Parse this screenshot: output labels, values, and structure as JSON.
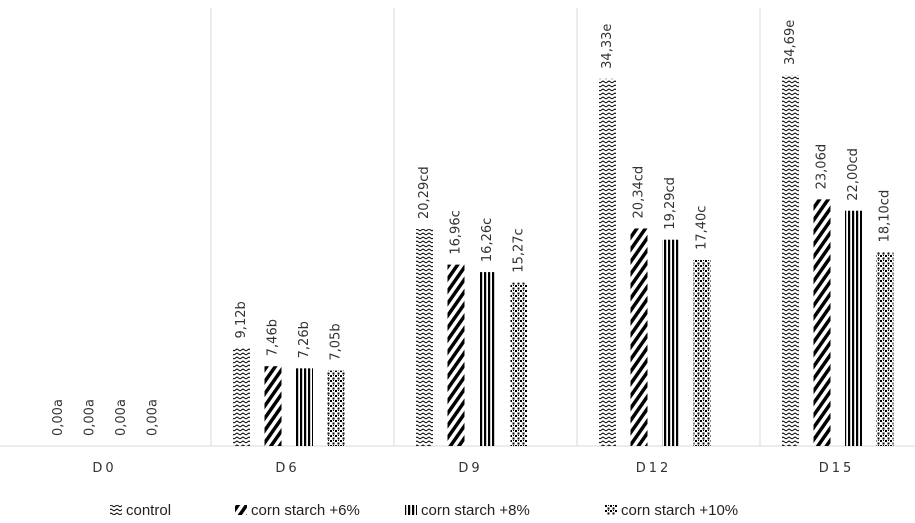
{
  "chart_data": {
    "type": "bar",
    "categories": [
      "D0",
      "D6",
      "D9",
      "D12",
      "D15"
    ],
    "series": [
      {
        "name": "control",
        "color": "#000000",
        "pattern": "zigzag",
        "values": [
          0,
          9.12,
          20.29,
          34.33,
          34.69
        ],
        "value_labels": [
          "0,00a",
          "9,12b",
          "20,29cd",
          "34,33e",
          "34,69e"
        ]
      },
      {
        "name": "corn starch +6%",
        "color": "#000000",
        "pattern": "diagonal",
        "values": [
          0,
          7.46,
          16.96,
          20.34,
          23.06
        ],
        "value_labels": [
          "0,00a",
          "7,46b",
          "16,96c",
          "20,34cd",
          "23,06d"
        ]
      },
      {
        "name": "corn starch +8%",
        "color": "#000000",
        "pattern": "vertical",
        "values": [
          0,
          7.26,
          16.26,
          19.29,
          22.0
        ],
        "value_labels": [
          "0,00a",
          "7,26b",
          "16,26c",
          "19,29cd",
          "22,00cd"
        ]
      },
      {
        "name": "corn starch +10%",
        "color": "#000000",
        "pattern": "dots",
        "values": [
          0,
          7.05,
          15.27,
          17.4,
          18.1
        ],
        "value_labels": [
          "0,00a",
          "7,05b",
          "15,27c",
          "17,40c",
          "18,10cd"
        ]
      }
    ],
    "legend": "bottom"
  }
}
